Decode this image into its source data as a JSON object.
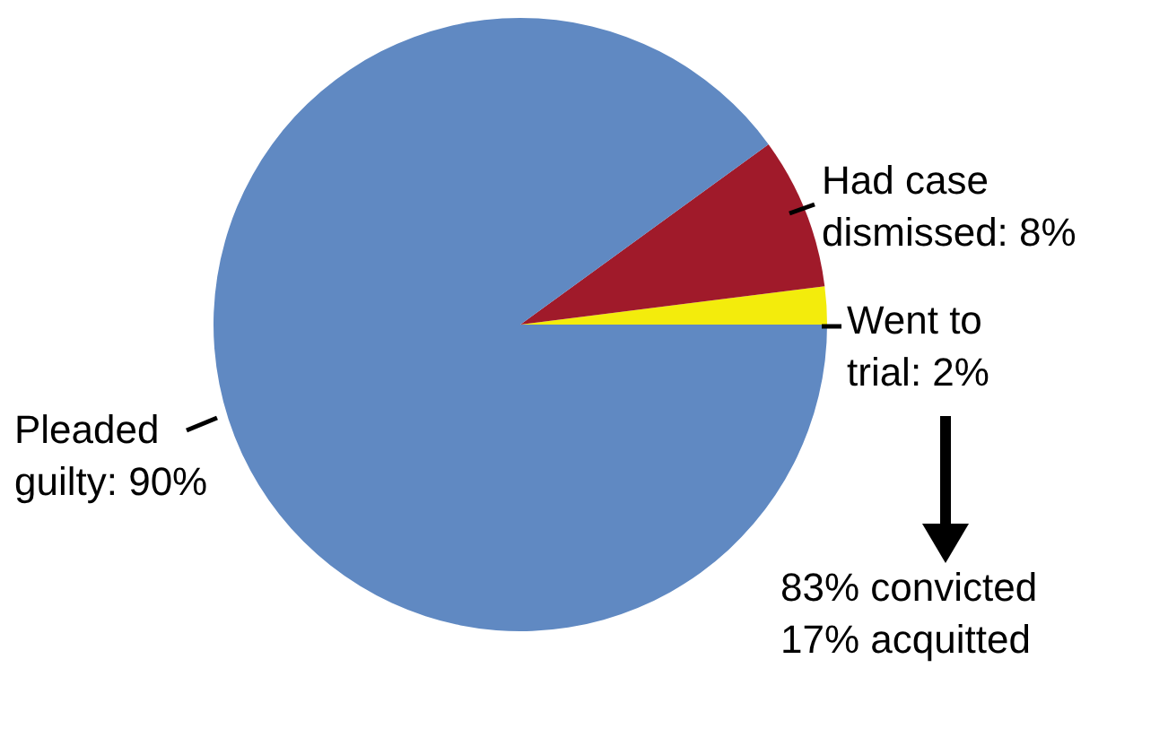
{
  "chart_data": {
    "type": "pie",
    "categories": [
      "Went to trial",
      "Had case dismissed",
      "Pleaded guilty"
    ],
    "values": [
      2,
      8,
      90
    ],
    "colors": [
      "#f3ec0c",
      "#a01a2a",
      "#6089c2"
    ],
    "value_labels": [
      "2%",
      "8%",
      "90%"
    ],
    "annotations": [
      "83% convicted",
      "17% acquitted"
    ],
    "legend": false
  }
}
